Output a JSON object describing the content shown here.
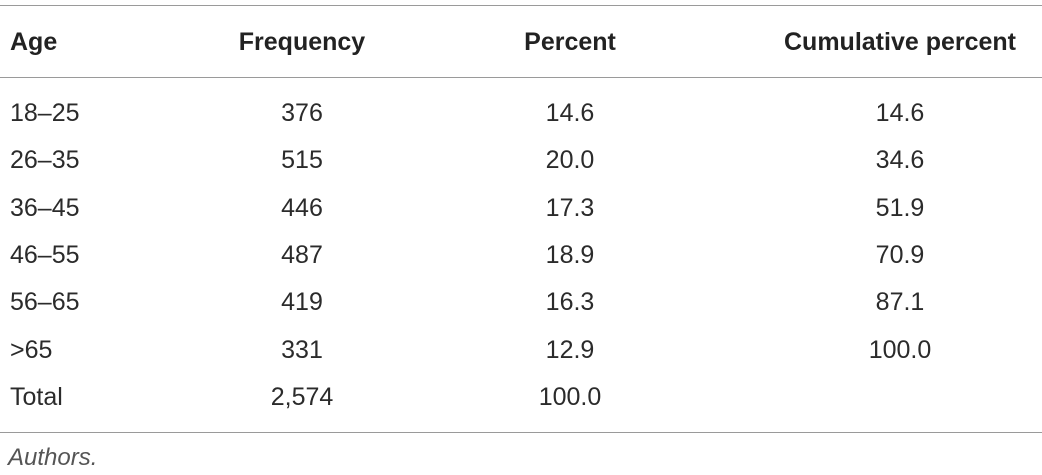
{
  "table": {
    "header": [
      "Age",
      "Frequency",
      "Percent",
      "Cumulative percent"
    ],
    "rows": [
      [
        "18–25",
        "376",
        "14.6",
        "14.6"
      ],
      [
        "26–35",
        "515",
        "20.0",
        "34.6"
      ],
      [
        "36–45",
        "446",
        "17.3",
        "51.9"
      ],
      [
        "46–55",
        "487",
        "18.9",
        "70.9"
      ],
      [
        "56–65",
        "419",
        "16.3",
        "87.1"
      ],
      [
        ">65",
        "331",
        "12.9",
        "100.0"
      ],
      [
        "Total",
        "2,574",
        "100.0"
      ]
    ],
    "footnote": "Authors."
  }
}
